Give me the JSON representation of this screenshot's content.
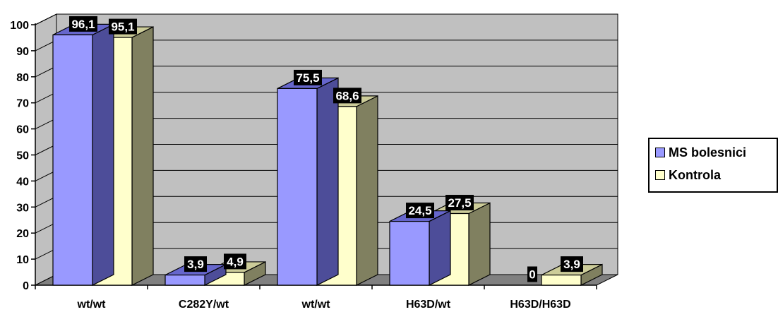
{
  "chart_data": {
    "type": "bar",
    "categories": [
      "wt/wt",
      "C282Y/wt",
      "wt/wt",
      "H63D/wt",
      "H63D/H63D"
    ],
    "series": [
      {
        "name": "MS bolesnici",
        "values": [
          96.1,
          3.9,
          75.5,
          24.5,
          0
        ],
        "labels": [
          "96,1",
          "3,9",
          "75,5",
          "24,5",
          "0"
        ]
      },
      {
        "name": "Kontrola",
        "values": [
          95.1,
          4.9,
          68.6,
          27.5,
          3.9
        ],
        "labels": [
          "95,1",
          "4,9",
          "68,6",
          "27,5",
          "3,9"
        ]
      }
    ],
    "yticks": [
      0,
      10,
      20,
      30,
      40,
      50,
      60,
      70,
      80,
      90,
      100
    ],
    "ylim": [
      0,
      100
    ],
    "grid": true,
    "legend": "right",
    "colors": {
      "series_front": [
        "#9999FF",
        "#FFFFCC"
      ],
      "series_top": [
        "#6666CC",
        "#CCCC99"
      ],
      "series_side": [
        "#4D4D99",
        "#808060"
      ],
      "wall": "#C0C0C0",
      "floor": "#808080",
      "gridline": "#000000",
      "label_bg": "#000000",
      "label_text": "#FFFFFF"
    }
  }
}
